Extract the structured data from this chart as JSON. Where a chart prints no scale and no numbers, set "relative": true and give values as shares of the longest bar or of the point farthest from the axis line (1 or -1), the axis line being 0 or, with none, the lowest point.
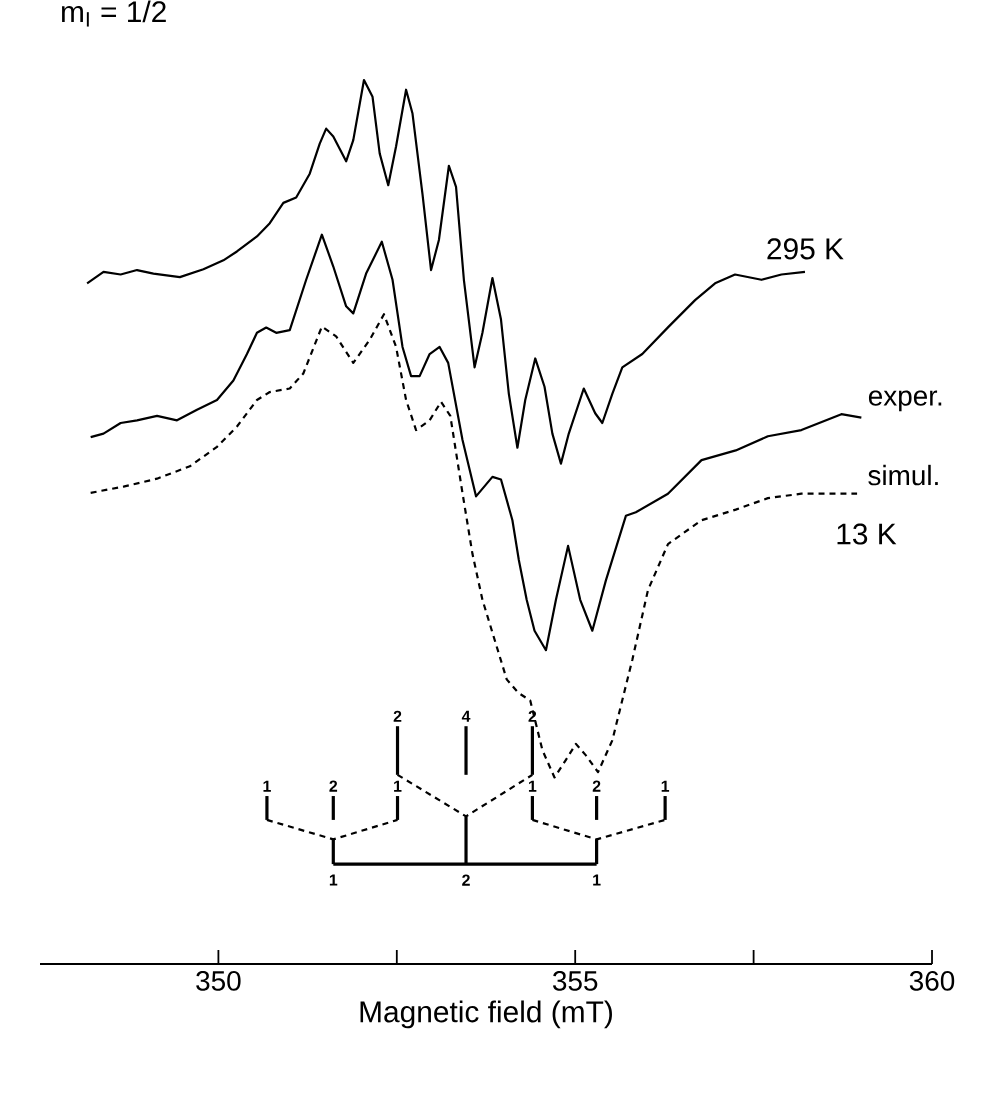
{
  "chart_data": {
    "type": "line",
    "relative": true,
    "xlabel": "Magnetic field (mT)",
    "xlim": [
      347.5,
      360
    ],
    "xticks": [
      350,
      {
        "value": 352.5,
        "label": null
      },
      355,
      {
        "value": 357.5,
        "label": null
      },
      360
    ],
    "series": [
      {
        "name": "295 K",
        "color": "#000000",
        "line_style": "solid",
        "x": [
          348.16,
          348.39,
          348.63,
          348.86,
          349.09,
          349.46,
          349.79,
          350.07,
          350.26,
          350.54,
          350.72,
          350.91,
          351.09,
          351.28,
          351.42,
          351.51,
          351.61,
          351.79,
          351.89,
          352.04,
          352.16,
          352.26,
          352.38,
          352.49,
          352.63,
          352.72,
          352.86,
          352.98,
          353.09,
          353.23,
          353.33,
          353.44,
          353.59,
          353.7,
          353.84,
          353.96,
          354.07,
          354.19,
          354.3,
          354.44,
          354.57,
          354.68,
          354.8,
          354.91,
          355.12,
          355.28,
          355.38,
          355.52,
          355.66,
          355.94,
          356.31,
          356.68,
          356.96,
          357.24,
          357.61,
          357.89,
          358.22
        ],
        "values": [
          0.77,
          0.783,
          0.78,
          0.785,
          0.781,
          0.777,
          0.786,
          0.796,
          0.806,
          0.823,
          0.838,
          0.861,
          0.867,
          0.894,
          0.928,
          0.945,
          0.936,
          0.908,
          0.932,
          1.0,
          0.981,
          0.917,
          0.881,
          0.925,
          0.989,
          0.962,
          0.871,
          0.785,
          0.819,
          0.903,
          0.879,
          0.774,
          0.675,
          0.714,
          0.776,
          0.729,
          0.645,
          0.584,
          0.638,
          0.685,
          0.653,
          0.6,
          0.566,
          0.6,
          0.651,
          0.623,
          0.612,
          0.645,
          0.675,
          0.69,
          0.721,
          0.751,
          0.77,
          0.78,
          0.774,
          0.78,
          0.783
        ]
      },
      {
        "name": "exper.",
        "color": "#000000",
        "line_style": "solid",
        "x": [
          348.21,
          348.39,
          348.63,
          348.86,
          349.14,
          349.42,
          349.7,
          349.98,
          350.21,
          350.4,
          350.54,
          350.67,
          350.81,
          351.0,
          351.23,
          351.45,
          351.61,
          351.79,
          351.89,
          352.07,
          352.29,
          352.44,
          352.58,
          352.7,
          352.82,
          352.96,
          353.1,
          353.22,
          353.42,
          353.61,
          353.84,
          353.96,
          354.12,
          354.21,
          354.32,
          354.43,
          354.59,
          354.73,
          354.9,
          355.07,
          355.24,
          355.43,
          355.71,
          355.85,
          356.3,
          356.77,
          357.25,
          357.7,
          358.17,
          358.73,
          359.01
        ],
        "values": [
          0.596,
          0.6,
          0.612,
          0.615,
          0.62,
          0.615,
          0.627,
          0.638,
          0.66,
          0.69,
          0.714,
          0.72,
          0.714,
          0.717,
          0.774,
          0.825,
          0.789,
          0.744,
          0.736,
          0.781,
          0.817,
          0.774,
          0.698,
          0.665,
          0.665,
          0.69,
          0.698,
          0.68,
          0.593,
          0.529,
          0.551,
          0.548,
          0.502,
          0.457,
          0.412,
          0.377,
          0.355,
          0.412,
          0.473,
          0.412,
          0.377,
          0.434,
          0.507,
          0.511,
          0.532,
          0.57,
          0.581,
          0.597,
          0.604,
          0.622,
          0.618
        ]
      },
      {
        "name": "simul.",
        "color": "#000000",
        "line_style": "dashed",
        "x": [
          348.21,
          348.67,
          349.14,
          349.6,
          349.98,
          350.26,
          350.54,
          350.72,
          351.0,
          351.19,
          351.45,
          351.65,
          351.89,
          352.12,
          352.32,
          352.49,
          352.63,
          352.77,
          352.96,
          353.12,
          353.25,
          353.42,
          353.56,
          353.7,
          354.04,
          354.2,
          354.37,
          354.54,
          354.71,
          354.87,
          355.01,
          355.15,
          355.32,
          355.52,
          355.8,
          356.02,
          356.3,
          356.77,
          357.25,
          357.7,
          358.17,
          358.95
        ],
        "values": [
          0.533,
          0.54,
          0.549,
          0.563,
          0.585,
          0.608,
          0.638,
          0.647,
          0.651,
          0.668,
          0.721,
          0.71,
          0.68,
          0.706,
          0.735,
          0.698,
          0.638,
          0.604,
          0.615,
          0.636,
          0.62,
          0.533,
          0.464,
          0.412,
          0.322,
          0.307,
          0.298,
          0.242,
          0.211,
          0.231,
          0.249,
          0.236,
          0.217,
          0.253,
          0.344,
          0.423,
          0.475,
          0.502,
          0.514,
          0.527,
          0.532,
          0.532
        ]
      },
      {
        "color": "#000000",
        "line_style": "solid",
        "x": [
          351.61,
          355.3
        ],
        "values": [
          0.113,
          0.113
        ]
      },
      {
        "name": "1",
        "color": "#000000",
        "line_style": "solid",
        "x": [
          351.61,
          351.61
        ],
        "values": [
          0.141,
          0.113
        ]
      },
      {
        "name": "2",
        "color": "#000000",
        "line_style": "solid",
        "x": [
          353.47,
          353.47
        ],
        "values": [
          0.167,
          0.113
        ]
      },
      {
        "name": "1",
        "color": "#000000",
        "line_style": "solid",
        "x": [
          355.3,
          355.3
        ],
        "values": [
          0.141,
          0.113
        ]
      },
      {
        "name": "1",
        "color": "#000000",
        "line_style": "solid",
        "x": [
          350.68,
          350.68
        ],
        "values": [
          0.163,
          0.19
        ]
      },
      {
        "name": "2",
        "color": "#000000",
        "line_style": "solid",
        "x": [
          351.61,
          351.61
        ],
        "values": [
          0.163,
          0.19
        ]
      },
      {
        "name": "1",
        "color": "#000000",
        "line_style": "solid",
        "x": [
          352.51,
          352.51
        ],
        "values": [
          0.163,
          0.19
        ]
      },
      {
        "name": "1",
        "color": "#000000",
        "line_style": "solid",
        "x": [
          354.4,
          354.4
        ],
        "values": [
          0.163,
          0.19
        ]
      },
      {
        "name": "2",
        "color": "#000000",
        "line_style": "solid",
        "x": [
          355.3,
          355.3
        ],
        "values": [
          0.163,
          0.19
        ]
      },
      {
        "name": "1",
        "color": "#000000",
        "line_style": "solid",
        "x": [
          356.26,
          356.26
        ],
        "values": [
          0.163,
          0.19
        ]
      },
      {
        "name": "2",
        "color": "#000000",
        "line_style": "solid",
        "x": [
          352.51,
          352.51
        ],
        "values": [
          0.214,
          0.269
        ]
      },
      {
        "name": "4",
        "color": "#000000",
        "line_style": "solid",
        "x": [
          353.47,
          353.47
        ],
        "values": [
          0.214,
          0.269
        ]
      },
      {
        "name": "2",
        "color": "#000000",
        "line_style": "solid",
        "x": [
          354.4,
          354.4
        ],
        "values": [
          0.214,
          0.269
        ]
      },
      {
        "color": "#000000",
        "line_style": "dashed",
        "x": [
          350.68,
          351.61,
          352.51
        ],
        "values": [
          0.163,
          0.141,
          0.163
        ]
      },
      {
        "color": "#000000",
        "line_style": "dashed",
        "x": [
          352.51,
          353.47,
          354.4
        ],
        "values": [
          0.214,
          0.167,
          0.214
        ]
      },
      {
        "color": "#000000",
        "line_style": "dashed",
        "x": [
          354.4,
          355.3,
          356.26
        ],
        "values": [
          0.163,
          0.141,
          0.163
        ]
      }
    ],
    "annotations": [
      "m$_{I}$ = 1/2",
      "13 K"
    ]
  }
}
